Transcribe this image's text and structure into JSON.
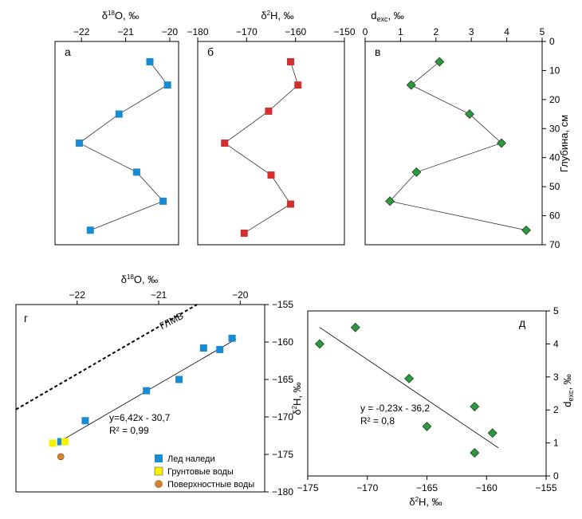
{
  "chart_data": [
    {
      "id": "a",
      "type": "line",
      "panel_label": "а",
      "xlabel": "δ18O, ‰",
      "x_ticks": [
        -22,
        -21,
        -20
      ],
      "xlim": [
        -22.6,
        -19.8
      ],
      "ylim": [
        0,
        70
      ],
      "series": [
        {
          "color": "#1b8bd1",
          "marker": "square",
          "x": [
            -20.45,
            -20.05,
            -21.15,
            -22.05,
            -20.75,
            -20.15,
            -21.8
          ],
          "y": [
            7,
            15,
            25,
            35,
            45,
            55,
            65
          ]
        }
      ]
    },
    {
      "id": "b",
      "type": "line",
      "panel_label": "б",
      "xlabel": "δ2H, ‰",
      "x_ticks": [
        -180,
        -170,
        -160,
        -150
      ],
      "xlim": [
        -180,
        -150
      ],
      "ylim": [
        0,
        70
      ],
      "series": [
        {
          "color": "#d42e2e",
          "marker": "square",
          "x": [
            -161,
            -159.5,
            -165.5,
            -174.5,
            -165,
            -161,
            -170.5
          ],
          "y": [
            7,
            15,
            24,
            35,
            46,
            56,
            66
          ]
        }
      ]
    },
    {
      "id": "c",
      "type": "line",
      "panel_label": "в",
      "xlabel": "dexc, ‰",
      "x_ticks": [
        0,
        1,
        2,
        3,
        4,
        5
      ],
      "xlim": [
        0,
        5
      ],
      "ylim": [
        0,
        70
      ],
      "ylabel": "Глубина, см",
      "y_ticks": [
        0,
        10,
        20,
        30,
        40,
        50,
        60,
        70
      ],
      "series": [
        {
          "color": "#2a9a3c",
          "marker": "diamond",
          "x": [
            2.1,
            1.3,
            2.95,
            3.85,
            1.45,
            0.7,
            4.55
          ],
          "y": [
            7,
            15,
            25,
            35,
            45,
            55,
            65
          ]
        }
      ]
    },
    {
      "id": "g",
      "type": "scatter",
      "panel_label": "г",
      "xlabel": "δ18O, ‰",
      "ylabel": "δ2H, ‰",
      "x_ticks": [
        -22,
        -21,
        -20
      ],
      "y_ticks": [
        -155,
        -160,
        -165,
        -170,
        -175,
        -180
      ],
      "xlim": [
        -22.75,
        -19.7
      ],
      "ylim": [
        -180,
        -155
      ],
      "gmwl_label": "ГЛМВ",
      "gmwl": {
        "x": [
          -22.75,
          -20.53
        ],
        "y": [
          -169,
          -155
        ]
      },
      "fit_line": {
        "x": [
          -22.2,
          -20.05
        ],
        "y": [
          -173.2,
          -159.6
        ]
      },
      "equation": "y=6,42x - 30,7",
      "r2": "R² = 0,99",
      "series": [
        {
          "name": "Лед наледи",
          "color": "#1b8bd1",
          "marker": "square",
          "x": [
            -20.1,
            -20.25,
            -20.45,
            -20.75,
            -21.15,
            -21.9,
            -22.2
          ],
          "y": [
            -159.5,
            -161,
            -160.8,
            -165,
            -166.5,
            -170.5,
            -173.3
          ]
        },
        {
          "name": "Грунтовые воды",
          "color": "#f7f000",
          "marker": "square",
          "x": [
            -22.3,
            -22.15
          ],
          "y": [
            -173.5,
            -173.3
          ]
        },
        {
          "name": "Поверхностные воды",
          "color": "#d9822b",
          "marker": "circle",
          "x": [
            -22.2
          ],
          "y": [
            -175.3
          ]
        }
      ]
    },
    {
      "id": "d",
      "type": "scatter",
      "panel_label": "д",
      "xlabel": "δ2H, ‰",
      "ylabel": "dexc, ‰",
      "x_ticks": [
        -175,
        -170,
        -165,
        -160,
        -155
      ],
      "y_ticks": [
        0,
        1,
        2,
        3,
        4,
        5
      ],
      "xlim": [
        -175,
        -155
      ],
      "ylim": [
        0,
        5
      ],
      "fit_line": {
        "x": [
          -174,
          -159
        ],
        "y": [
          4.5,
          0.85
        ]
      },
      "equation": "y = -0,23x - 36,2",
      "r2": "R² = 0,8",
      "series": [
        {
          "color": "#2a9a3c",
          "marker": "diamond",
          "x": [
            -174,
            -171,
            -166.5,
            -165,
            -161,
            -161,
            -159.5
          ],
          "y": [
            4,
            4.5,
            2.95,
            1.5,
            2.1,
            0.7,
            1.3
          ]
        }
      ]
    }
  ]
}
